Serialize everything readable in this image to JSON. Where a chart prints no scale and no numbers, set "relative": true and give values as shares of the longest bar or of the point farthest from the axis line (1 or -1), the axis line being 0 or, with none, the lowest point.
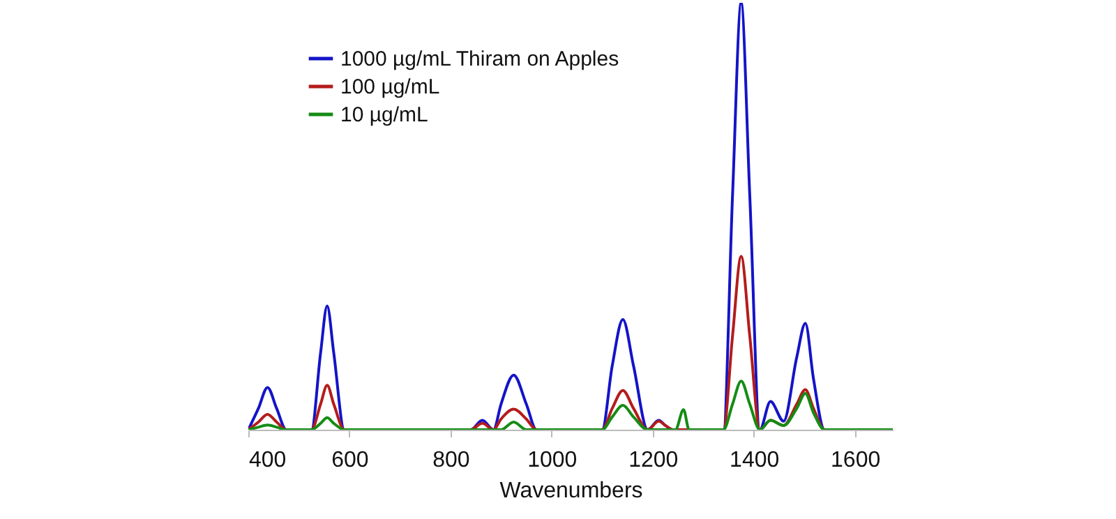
{
  "chart_data": {
    "type": "line",
    "relative": true,
    "xlabel": "Wavenumbers",
    "xlim": [
      400,
      1675
    ],
    "xticks": [
      400,
      600,
      800,
      1000,
      1200,
      1400,
      1600
    ],
    "legend": "top left",
    "grid": false,
    "marker": "none",
    "line_style": "solid",
    "series": [
      {
        "name": "1000 µg/mL Thiram on Apples",
        "color": "#1414c8",
        "x": [
          400,
          420,
          438,
          456,
          475,
          525,
          543,
          556,
          569,
          590,
          840,
          863,
          885,
          900,
          925,
          950,
          970,
          1100,
          1120,
          1141,
          1162,
          1190,
          1212,
          1225,
          1240,
          1340,
          1358,
          1375,
          1392,
          1412,
          1433,
          1459,
          1485,
          1502,
          1518,
          1540,
          1675
        ],
        "values": [
          0,
          0.05,
          0.099,
          0.05,
          0,
          0,
          0.18,
          0.29,
          0.18,
          0,
          0,
          0.022,
          0,
          0.06,
          0.128,
          0.06,
          0,
          0,
          0.15,
          0.258,
          0.15,
          0,
          0.022,
          0.01,
          0,
          0,
          0.55,
          1.0,
          0.55,
          0,
          0.066,
          0.02,
          0.17,
          0.249,
          0.12,
          0,
          0
        ]
      },
      {
        "name": "100 µg/mL",
        "color": "#b41c1c",
        "x": [
          400,
          420,
          438,
          456,
          475,
          525,
          543,
          556,
          569,
          590,
          840,
          863,
          885,
          900,
          925,
          950,
          970,
          1100,
          1120,
          1141,
          1162,
          1190,
          1212,
          1225,
          1240,
          1340,
          1358,
          1375,
          1392,
          1412,
          1433,
          1459,
          1485,
          1502,
          1518,
          1540,
          1675
        ],
        "values": [
          0,
          0.018,
          0.036,
          0.018,
          0,
          0,
          0.06,
          0.104,
          0.06,
          0,
          0,
          0.015,
          0,
          0.025,
          0.048,
          0.025,
          0,
          0,
          0.05,
          0.092,
          0.05,
          0,
          0.02,
          0.01,
          0,
          0,
          0.22,
          0.406,
          0.22,
          0,
          0.022,
          0.01,
          0.06,
          0.094,
          0.05,
          0,
          0
        ]
      },
      {
        "name": "10 µg/mL",
        "color": "#148c14",
        "x": [
          400,
          420,
          438,
          456,
          475,
          525,
          543,
          556,
          569,
          590,
          900,
          925,
          950,
          1100,
          1120,
          1141,
          1162,
          1190,
          1245,
          1261,
          1272,
          1340,
          1358,
          1375,
          1392,
          1412,
          1433,
          1459,
          1485,
          1502,
          1518,
          1540,
          1675
        ],
        "values": [
          0,
          0.006,
          0.011,
          0.006,
          0,
          0,
          0.015,
          0.028,
          0.015,
          0,
          0,
          0.018,
          0,
          0,
          0.03,
          0.057,
          0.03,
          0,
          0,
          0.047,
          0,
          0,
          0.06,
          0.114,
          0.06,
          0,
          0.022,
          0.01,
          0.05,
          0.085,
          0.04,
          0,
          0
        ]
      }
    ]
  }
}
